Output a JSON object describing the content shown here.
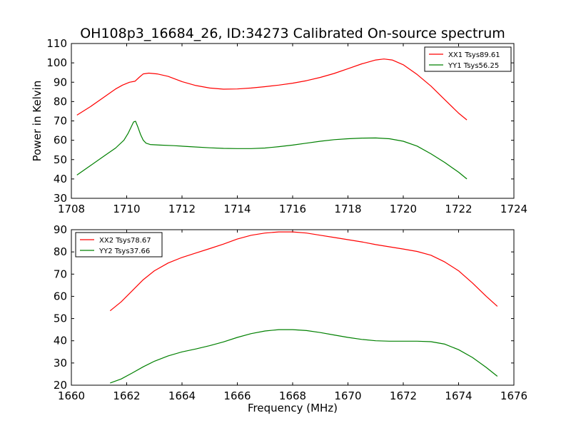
{
  "title": "OH108p3_16684_26, ID:34273 Calibrated On-source spectrum",
  "chart_data": [
    {
      "type": "line",
      "ylabel": "Power in Kelvin",
      "xlabel": "",
      "xlim": [
        1708,
        1724
      ],
      "ylim": [
        30,
        110
      ],
      "xticks": [
        "1708",
        "1710",
        "1712",
        "1714",
        "1716",
        "1718",
        "1720",
        "1722",
        "1724"
      ],
      "yticks": [
        "30",
        "40",
        "50",
        "60",
        "70",
        "80",
        "90",
        "100",
        "110"
      ],
      "legend_position": "top-right",
      "series": [
        {
          "name": "XX1 Tsys89.61",
          "color": "#ff0000",
          "x": [
            1708.2,
            1708.7,
            1709.2,
            1709.6,
            1709.85,
            1710.1,
            1710.3,
            1710.45,
            1710.6,
            1710.8,
            1711.1,
            1711.5,
            1712.0,
            1712.5,
            1713.0,
            1713.5,
            1714.0,
            1714.5,
            1715.0,
            1715.5,
            1716.0,
            1716.5,
            1717.0,
            1717.5,
            1718.0,
            1718.5,
            1719.0,
            1719.3,
            1719.6,
            1720.0,
            1720.5,
            1721.0,
            1721.5,
            1722.0,
            1722.3
          ],
          "y": [
            73,
            77.5,
            82.5,
            86.5,
            88.5,
            90,
            90.5,
            92.5,
            94.3,
            94.7,
            94.3,
            93,
            90.3,
            88.3,
            87,
            86.4,
            86.5,
            87,
            87.7,
            88.5,
            89.5,
            90.8,
            92.5,
            94.5,
            97,
            99.5,
            101.5,
            102,
            101.5,
            99,
            94,
            88,
            81,
            74,
            70.5
          ]
        },
        {
          "name": "YY1 Tsys56.25",
          "color": "#008000",
          "x": [
            1708.2,
            1708.7,
            1709.2,
            1709.6,
            1709.9,
            1710.05,
            1710.15,
            1710.25,
            1710.32,
            1710.4,
            1710.5,
            1710.6,
            1710.7,
            1710.85,
            1711.2,
            1711.7,
            1712.3,
            1713.0,
            1713.5,
            1714.0,
            1714.5,
            1715.0,
            1715.5,
            1716.0,
            1716.5,
            1717.0,
            1717.5,
            1718.0,
            1718.5,
            1719.0,
            1719.5,
            1720.0,
            1720.5,
            1721.0,
            1721.5,
            1722.0,
            1722.3
          ],
          "y": [
            42,
            47,
            52,
            56,
            60,
            63.5,
            66.5,
            69.5,
            69.8,
            67,
            63,
            60,
            58.5,
            57.8,
            57.5,
            57.2,
            56.7,
            56.1,
            55.8,
            55.7,
            55.7,
            56,
            56.7,
            57.5,
            58.5,
            59.5,
            60.3,
            60.8,
            61.1,
            61.2,
            60.8,
            59.5,
            57,
            53,
            48.5,
            43.5,
            40
          ]
        }
      ]
    },
    {
      "type": "line",
      "ylabel": "",
      "xlabel": "Frequency (MHz)",
      "xlim": [
        1660,
        1676
      ],
      "ylim": [
        20,
        90
      ],
      "xticks": [
        "1660",
        "1662",
        "1664",
        "1666",
        "1668",
        "1670",
        "1672",
        "1674",
        "1676"
      ],
      "yticks": [
        "20",
        "30",
        "40",
        "50",
        "60",
        "70",
        "80",
        "90"
      ],
      "legend_position": "top-left",
      "series": [
        {
          "name": "XX2 Tsys78.67",
          "color": "#ff0000",
          "x": [
            1661.4,
            1661.8,
            1662.2,
            1662.6,
            1663.0,
            1663.5,
            1664.0,
            1664.5,
            1665.0,
            1665.5,
            1666.0,
            1666.5,
            1667.0,
            1667.5,
            1668.0,
            1668.5,
            1669.0,
            1669.5,
            1670.0,
            1670.5,
            1671.0,
            1671.5,
            1672.0,
            1672.5,
            1673.0,
            1673.5,
            1674.0,
            1674.5,
            1675.0,
            1675.4
          ],
          "y": [
            53.5,
            57.5,
            62.5,
            67.5,
            71.5,
            75,
            77.5,
            79.5,
            81.5,
            83.5,
            85.8,
            87.5,
            88.5,
            89,
            89,
            88.5,
            87.5,
            86.5,
            85.5,
            84.5,
            83.3,
            82.3,
            81.3,
            80.2,
            78.5,
            75.5,
            71.5,
            66,
            60,
            55.5
          ]
        },
        {
          "name": "YY2 Tsys37.66",
          "color": "#008000",
          "x": [
            1661.4,
            1661.8,
            1662.2,
            1662.6,
            1663.0,
            1663.5,
            1664.0,
            1664.5,
            1665.0,
            1665.5,
            1666.0,
            1666.5,
            1667.0,
            1667.5,
            1668.0,
            1668.5,
            1669.0,
            1669.5,
            1670.0,
            1670.5,
            1671.0,
            1671.5,
            1672.0,
            1672.5,
            1673.0,
            1673.5,
            1674.0,
            1674.5,
            1675.0,
            1675.4
          ],
          "y": [
            21,
            22.8,
            25.5,
            28.3,
            30.8,
            33.2,
            35,
            36.3,
            37.8,
            39.5,
            41.5,
            43.2,
            44.4,
            45,
            45,
            44.6,
            43.7,
            42.6,
            41.5,
            40.6,
            40,
            39.8,
            39.8,
            39.8,
            39.6,
            38.5,
            36,
            32.5,
            28,
            24
          ]
        }
      ]
    }
  ]
}
